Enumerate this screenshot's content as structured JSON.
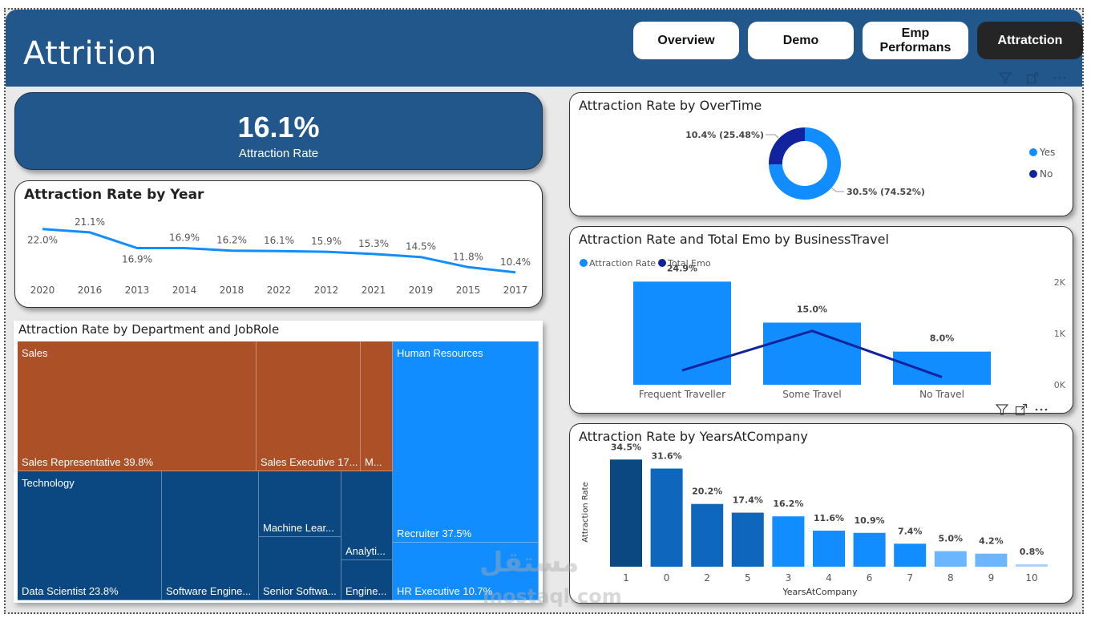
{
  "header": {
    "title": "Attrition",
    "nav": [
      {
        "label": "Overview",
        "active": false
      },
      {
        "label": "Demo",
        "active": false
      },
      {
        "label": "Emp Performans",
        "active": false
      },
      {
        "label": "Attratction",
        "active": true
      }
    ],
    "tools": [
      "filter-icon",
      "focus-mode-icon",
      "more-options-icon"
    ]
  },
  "kpi": {
    "value": "16.1%",
    "label": "Attraction Rate"
  },
  "watermark": {
    "arabic": "مستقل",
    "latin": "mostaql.com"
  },
  "visual_tools": {
    "filter": "⛉",
    "focus": "⤢",
    "more": "···"
  },
  "chart_data": [
    {
      "id": "by_year",
      "type": "line",
      "title": "Attraction Rate by Year",
      "categories": [
        "2020",
        "2016",
        "2013",
        "2014",
        "2018",
        "2022",
        "2012",
        "2021",
        "2019",
        "2015",
        "2017"
      ],
      "values": [
        22.0,
        21.1,
        16.9,
        16.9,
        16.2,
        16.1,
        15.9,
        15.3,
        14.5,
        11.8,
        10.4
      ],
      "labels": [
        "22.0%",
        "21.1%",
        "16.9%",
        "16.9%",
        "16.2%",
        "16.1%",
        "15.9%",
        "15.3%",
        "14.5%",
        "11.8%",
        "10.4%"
      ],
      "xlabel": "",
      "ylabel": "",
      "color": "#118dff"
    },
    {
      "id": "by_department",
      "type": "treemap",
      "title": "Attraction Rate by Department and JobRole",
      "groups": [
        {
          "name": "Sales",
          "color": "#ac5028",
          "items": [
            {
              "label": "Sales Representative 39.8%",
              "value": 39.8
            },
            {
              "label": "Sales Executive 17...",
              "value": 17
            },
            {
              "label": "M...",
              "value": null
            }
          ]
        },
        {
          "name": "Technology",
          "color": "#0b4780",
          "items": [
            {
              "label": "Data Scientist 23.8%",
              "value": 23.8
            },
            {
              "label": "Software Engine...",
              "value": null
            },
            {
              "label": "Machine Lear...",
              "value": null
            },
            {
              "label": "Senior Softwa...",
              "value": null
            },
            {
              "label": "Analyti...",
              "value": null
            },
            {
              "label": "Engine...",
              "value": null
            }
          ]
        },
        {
          "name": "Human Resources",
          "color": "#118dff",
          "items": [
            {
              "label": "Recruiter 37.5%",
              "value": 37.5
            },
            {
              "label": "HR Executive 10.7%",
              "value": 10.7
            }
          ]
        }
      ]
    },
    {
      "id": "by_overtime",
      "type": "pie",
      "title": "Attraction Rate by OverTime",
      "slices": [
        {
          "name": "Yes",
          "value": 30.5,
          "share": 74.52,
          "label": "30.5% (74.52%)",
          "color": "#118dff"
        },
        {
          "name": "No",
          "value": 10.4,
          "share": 25.48,
          "label": "10.4% (25.48%)",
          "color": "#12239e"
        }
      ],
      "legend": [
        "Yes",
        "No"
      ],
      "legend_position": "right"
    },
    {
      "id": "by_business_travel",
      "type": "bar",
      "title": "Attraction Rate and Total Emo by BusinessTravel",
      "categories": [
        "Frequent Traveller",
        "Some Travel",
        "No Travel"
      ],
      "series": [
        {
          "name": "Attraction Rate",
          "type": "bar",
          "values": [
            24.9,
            15.0,
            8.0
          ],
          "labels": [
            "24.9%",
            "15.0%",
            "8.0%"
          ],
          "color": "#118dff"
        },
        {
          "name": "Total Emo",
          "type": "line",
          "values": [
            280,
            1050,
            150
          ],
          "color": "#12239e",
          "axis": "right"
        }
      ],
      "y2_ticks": [
        "0K",
        "1K",
        "2K"
      ],
      "y2lim": [
        0,
        2000
      ],
      "ylim": [
        0,
        30
      ],
      "legend_position": "top-left"
    },
    {
      "id": "by_years_at_company",
      "type": "bar",
      "title": "Attraction Rate by YearsAtCompany",
      "categories": [
        "1",
        "0",
        "2",
        "5",
        "3",
        "4",
        "6",
        "7",
        "8",
        "9",
        "10"
      ],
      "values": [
        34.5,
        31.6,
        20.2,
        17.4,
        16.2,
        11.6,
        10.9,
        7.4,
        5.0,
        4.2,
        0.8
      ],
      "labels": [
        "34.5%",
        "31.6%",
        "20.2%",
        "17.4%",
        "16.2%",
        "11.6%",
        "10.9%",
        "7.4%",
        "5.0%",
        "4.2%",
        "0.8%"
      ],
      "colors": [
        "#0b4780",
        "#0f67bd",
        "#0f67bd",
        "#0f67bd",
        "#118dff",
        "#118dff",
        "#118dff",
        "#118dff",
        "#6bb6ff",
        "#6bb6ff",
        "#a9d4ff"
      ],
      "xlabel": "YearsAtCompany",
      "ylabel": "Attraction Rate",
      "ylim": [
        0,
        40
      ]
    }
  ]
}
